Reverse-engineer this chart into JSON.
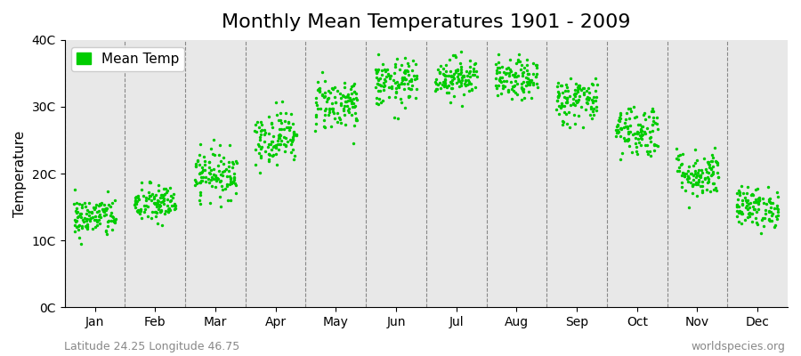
{
  "title": "Monthly Mean Temperatures 1901 - 2009",
  "ylabel": "Temperature",
  "xlabel": "",
  "subtitle_left": "Latitude 24.25 Longitude 46.75",
  "subtitle_right": "worldspecies.org",
  "legend_label": "Mean Temp",
  "dot_color": "#00cc00",
  "background_color": "#e8e8e8",
  "ylim": [
    0,
    40
  ],
  "yticks": [
    0,
    10,
    20,
    30,
    40
  ],
  "ytick_labels": [
    "0C",
    "10C",
    "20C",
    "30C",
    "40C"
  ],
  "months": [
    "Jan",
    "Feb",
    "Mar",
    "Apr",
    "May",
    "Jun",
    "Jul",
    "Aug",
    "Sep",
    "Oct",
    "Nov",
    "Dec"
  ],
  "mean_temps": [
    13.5,
    15.5,
    20.0,
    25.5,
    30.5,
    33.5,
    34.5,
    34.0,
    31.0,
    26.5,
    20.0,
    15.0
  ],
  "std_temps": [
    1.5,
    1.5,
    1.8,
    2.0,
    2.0,
    1.8,
    1.5,
    1.5,
    1.8,
    2.0,
    1.8,
    1.5
  ],
  "n_years": 109,
  "seed": 42,
  "title_fontsize": 16,
  "label_fontsize": 11,
  "tick_fontsize": 10,
  "subtitle_fontsize": 9
}
